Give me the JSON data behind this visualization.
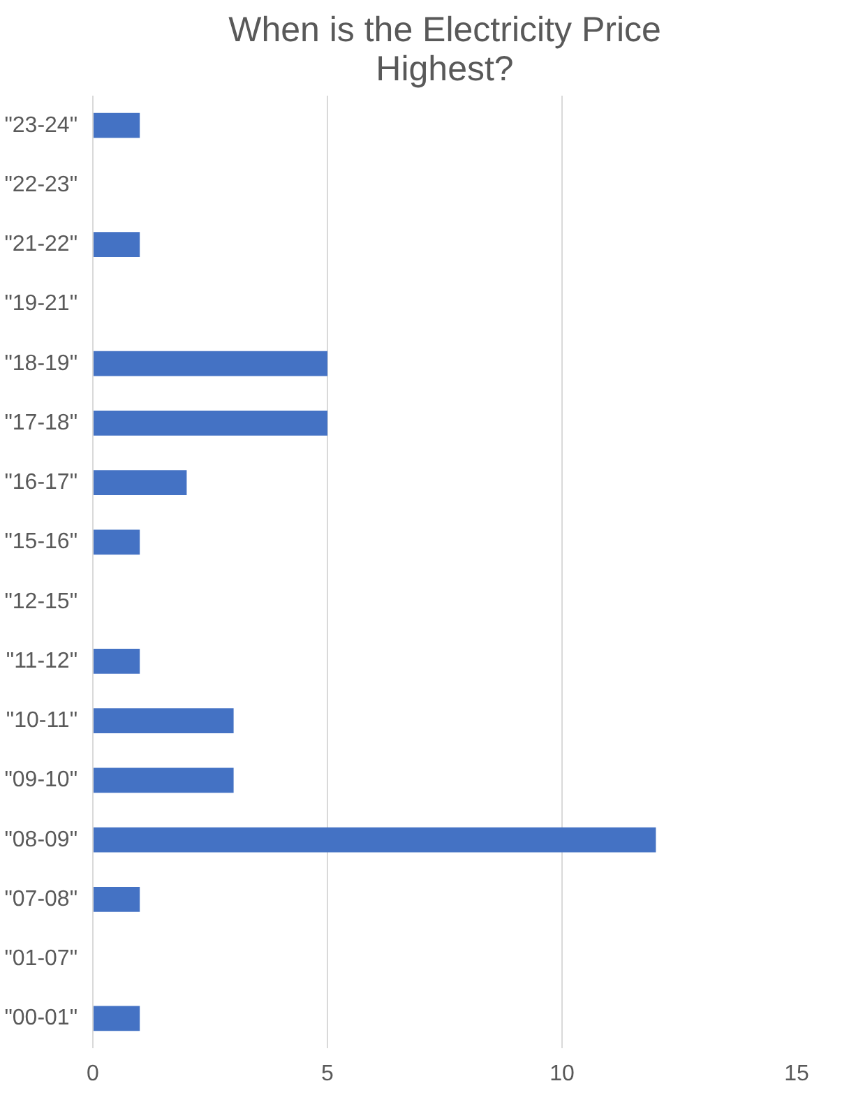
{
  "chart_data": {
    "type": "bar",
    "orientation": "horizontal",
    "title": "When is the Electricity Price Highest?",
    "categories": [
      "\"23-24\"",
      "\"22-23\"",
      "\"21-22\"",
      "\"19-21\"",
      "\"18-19\"",
      "\"17-18\"",
      "\"16-17\"",
      "\"15-16\"",
      "\"12-15\"",
      "\"11-12\"",
      "\"10-11\"",
      "\"09-10\"",
      "\"08-09\"",
      "\"07-08\"",
      "\"01-07\"",
      "\"00-01\""
    ],
    "values": [
      1,
      0,
      1,
      0,
      5,
      5,
      2,
      1,
      0,
      1,
      3,
      3,
      12,
      1,
      0,
      1
    ],
    "color": "#4472c4",
    "xlim": [
      0,
      15
    ],
    "xticks": [
      0,
      5,
      10,
      15
    ],
    "grid": "x",
    "legend": false
  }
}
